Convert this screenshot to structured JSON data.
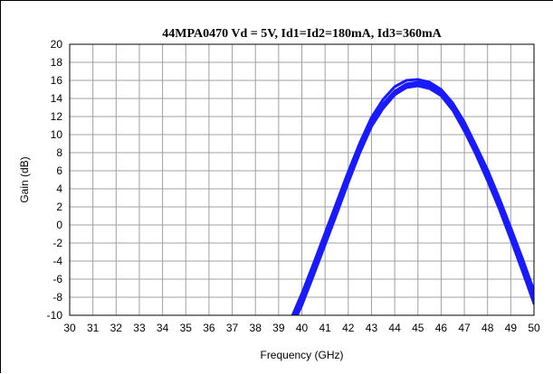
{
  "chart_data": {
    "type": "line",
    "title": "44MPA0470 Vd = 5V, Id1=Id2=180mA, Id3=360mA",
    "xlabel": "Frequency (GHz)",
    "ylabel": "Gain (dB)",
    "xlim": [
      30,
      50
    ],
    "ylim": [
      -10,
      20
    ],
    "x_ticks": [
      30,
      31,
      32,
      33,
      34,
      35,
      36,
      37,
      38,
      39,
      40,
      41,
      42,
      43,
      44,
      45,
      46,
      47,
      48,
      49,
      50
    ],
    "y_ticks": [
      20,
      18,
      16,
      14,
      12,
      10,
      8,
      6,
      4,
      2,
      0,
      -2,
      -4,
      -6,
      -8,
      -10
    ],
    "grid": true,
    "line_color": "#1a1aff",
    "series": [
      {
        "x": [
          39.7,
          40,
          40.5,
          41,
          41.5,
          42,
          42.5,
          43,
          43.5,
          44,
          44.5,
          45,
          45.5,
          46,
          46.5,
          47,
          47.5,
          48,
          48.5,
          49,
          49.5,
          50
        ],
        "y": [
          -10,
          -8.2,
          -5.0,
          -1.6,
          1.8,
          5.3,
          8.6,
          11.4,
          13.4,
          14.8,
          15.6,
          15.8,
          15.5,
          14.7,
          13.1,
          10.9,
          8.3,
          5.5,
          2.4,
          -0.9,
          -4.4,
          -8.0
        ]
      },
      {
        "x": [
          39.6,
          40,
          40.5,
          41,
          41.5,
          42,
          42.5,
          43,
          43.5,
          44,
          44.5,
          45,
          45.5,
          46,
          46.5,
          47,
          47.5,
          48,
          48.5,
          49,
          49.5,
          50
        ],
        "y": [
          -10,
          -7.6,
          -4.3,
          -0.9,
          2.5,
          5.9,
          9.1,
          11.9,
          13.9,
          15.3,
          16.0,
          16.1,
          15.8,
          15.0,
          13.5,
          11.4,
          8.8,
          6.1,
          3.0,
          -0.3,
          -3.7,
          -7.3
        ]
      },
      {
        "x": [
          39.8,
          40,
          40.5,
          41,
          41.5,
          42,
          42.5,
          43,
          43.5,
          44,
          44.5,
          45,
          45.5,
          46,
          46.5,
          47,
          47.5,
          48,
          48.5,
          49,
          49.5,
          50
        ],
        "y": [
          -10,
          -8.9,
          -5.6,
          -2.2,
          1.2,
          4.7,
          8.0,
          10.9,
          12.9,
          14.4,
          15.2,
          15.4,
          15.1,
          14.3,
          12.7,
          10.4,
          7.8,
          4.9,
          1.8,
          -1.6,
          -5.1,
          -8.7
        ]
      },
      {
        "x": [
          39.7,
          40,
          40.5,
          41,
          41.5,
          42,
          42.5,
          43,
          43.5,
          44,
          44.5,
          45,
          45.5,
          46,
          46.5,
          47,
          47.5,
          48,
          48.5,
          49,
          49.5,
          50
        ],
        "y": [
          -10,
          -8.5,
          -5.3,
          -1.9,
          1.5,
          5.0,
          8.3,
          11.2,
          13.2,
          14.6,
          15.4,
          15.6,
          15.3,
          14.5,
          12.9,
          10.7,
          8.1,
          5.2,
          2.1,
          -1.2,
          -4.7,
          -8.3
        ]
      }
    ]
  }
}
